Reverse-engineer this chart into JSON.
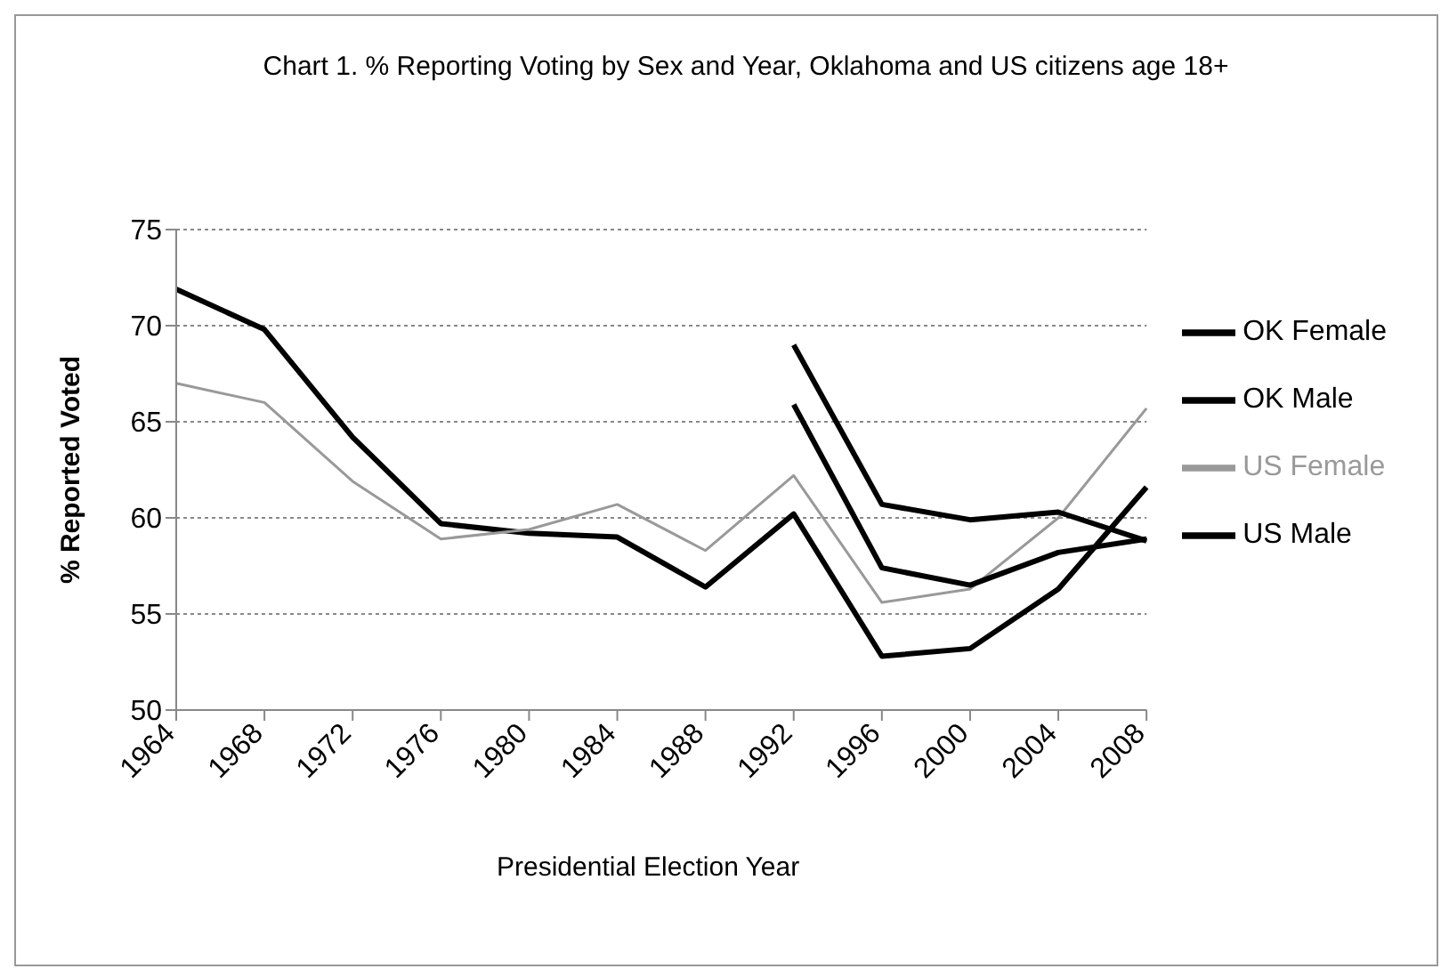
{
  "chart_data": {
    "type": "line",
    "title": "Chart 1.  % Reporting Voting by Sex and Year, Oklahoma and US citizens age 18+",
    "xlabel": "Presidential Election Year",
    "ylabel": "% Reported Voted",
    "categories": [
      "1964",
      "1968",
      "1972",
      "1976",
      "1980",
      "1984",
      "1988",
      "1992",
      "1996",
      "2000",
      "2004",
      "2008"
    ],
    "series": [
      {
        "name": "US Male",
        "color": "#000000",
        "values": [
          71.9,
          69.8,
          64.2,
          59.7,
          59.2,
          59.0,
          56.4,
          60.2,
          52.8,
          53.2,
          56.3,
          61.6
        ]
      },
      {
        "name": "US Female",
        "color": "#999999",
        "values": [
          67.0,
          66.0,
          61.9,
          58.9,
          59.4,
          60.7,
          58.3,
          62.2,
          55.6,
          56.3,
          60.0,
          65.7
        ]
      },
      {
        "name": "OK Male",
        "color": "#000000",
        "values": [
          null,
          null,
          null,
          null,
          null,
          null,
          null,
          65.9,
          57.4,
          56.5,
          58.2,
          58.9
        ]
      },
      {
        "name": "OK Female",
        "color": "#000000",
        "values": [
          null,
          null,
          null,
          null,
          null,
          null,
          null,
          69.0,
          60.7,
          59.9,
          60.3,
          58.8
        ]
      }
    ],
    "ylim": [
      50,
      75
    ],
    "yticks": [
      50,
      55,
      60,
      65,
      70,
      75
    ],
    "grid": "y",
    "legend": "right",
    "marker": "none",
    "line_style": "solid"
  }
}
